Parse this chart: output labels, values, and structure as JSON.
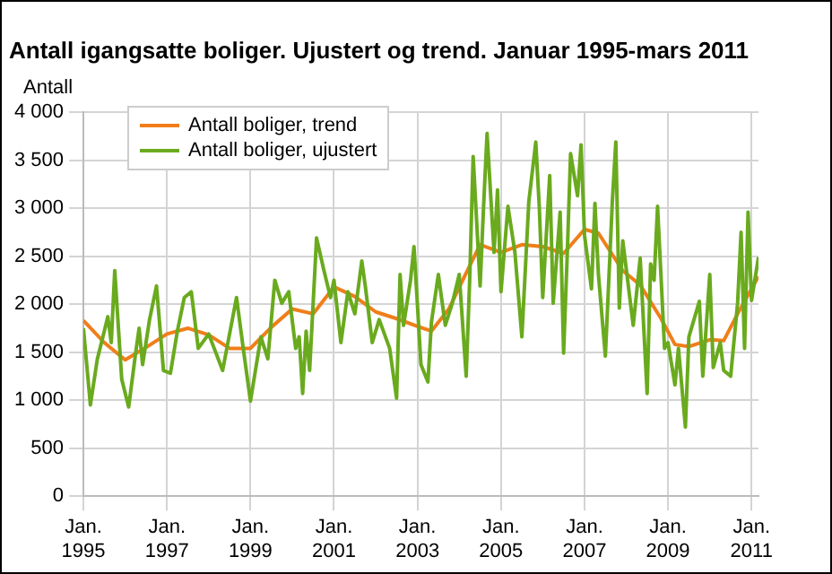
{
  "chart_data": {
    "type": "line",
    "title": "Antall igangsatte boliger. Ujustert og trend. Januar 1995-mars 2011",
    "ylabel": "Antall",
    "xlim": [
      "1995-01",
      "2011-03"
    ],
    "xticks": [
      {
        "value": "1995-01",
        "label": "Jan. 1995"
      },
      {
        "value": "1997-01",
        "label": "Jan. 1997"
      },
      {
        "value": "1999-01",
        "label": "Jan. 1999"
      },
      {
        "value": "2001-01",
        "label": "Jan. 2001"
      },
      {
        "value": "2003-01",
        "label": "Jan. 2003"
      },
      {
        "value": "2005-01",
        "label": "Jan. 2005"
      },
      {
        "value": "2007-01",
        "label": "Jan. 2007"
      },
      {
        "value": "2009-01",
        "label": "Jan. 2009"
      },
      {
        "value": "2011-01",
        "label": "Jan. 2011"
      }
    ],
    "ylim": [
      0,
      4000
    ],
    "yticks": [
      0,
      500,
      {
        "value": 1000,
        "label": "1 000"
      },
      {
        "value": 1500,
        "label": "1 500"
      },
      {
        "value": 2000,
        "label": "2 000"
      },
      {
        "value": 2500,
        "label": "2 500"
      },
      {
        "value": 3000,
        "label": "3 000"
      },
      {
        "value": 3500,
        "label": "3 500"
      },
      {
        "value": 4000,
        "label": "4 000"
      }
    ],
    "grid": true,
    "legend": "top left",
    "marker": "none",
    "line_style": "solid",
    "series": [
      {
        "name": "Antall boliger, trend",
        "color": "#f07e1a",
        "x": [
          "1995-01",
          "1995-07",
          "1996-01",
          "1996-07",
          "1997-01",
          "1997-07",
          "1998-01",
          "1998-07",
          "1999-01",
          "1999-07",
          "2000-01",
          "2000-07",
          "2001-01",
          "2001-07",
          "2002-01",
          "2002-07",
          "2003-01",
          "2003-05",
          "2003-10",
          "2004-04",
          "2004-07",
          "2005-01",
          "2005-07",
          "2006-01",
          "2006-07",
          "2007-01",
          "2007-05",
          "2007-12",
          "2008-05",
          "2008-11",
          "2009-03",
          "2009-07",
          "2010-01",
          "2010-05",
          "2010-09",
          "2011-03"
        ],
        "values": [
          1830,
          1600,
          1420,
          1550,
          1690,
          1750,
          1680,
          1540,
          1540,
          1760,
          1950,
          1900,
          2180,
          2080,
          1920,
          1850,
          1770,
          1720,
          1950,
          2400,
          2620,
          2540,
          2620,
          2600,
          2530,
          2780,
          2740,
          2350,
          2200,
          1850,
          1580,
          1560,
          1630,
          1620,
          1900,
          2290
        ]
      },
      {
        "name": "Antall boliger, ujustert",
        "color": "#6aaa1e",
        "x": [
          "1995-01",
          "1995-03",
          "1995-05",
          "1995-07",
          "1995-08",
          "1995-09",
          "1995-10",
          "1995-12",
          "1996-02",
          "1996-04",
          "1996-05",
          "1996-06",
          "1996-08",
          "1996-10",
          "1996-12",
          "1997-02",
          "1997-04",
          "1997-06",
          "1997-08",
          "1997-10",
          "1998-01",
          "1998-05",
          "1998-09",
          "1998-11",
          "1999-01",
          "1999-04",
          "1999-06",
          "1999-08",
          "1999-10",
          "1999-12",
          "2000-02",
          "2000-03",
          "2000-04",
          "2000-05",
          "2000-06",
          "2000-08",
          "2000-10",
          "2000-12",
          "2001-01",
          "2001-03",
          "2001-05",
          "2001-07",
          "2001-09",
          "2001-10",
          "2001-12",
          "2002-02",
          "2002-05",
          "2002-07",
          "2002-08",
          "2002-09",
          "2002-11",
          "2002-12",
          "2003-02",
          "2003-04",
          "2003-05",
          "2003-07",
          "2003-09",
          "2003-11",
          "2004-01",
          "2004-03",
          "2004-04",
          "2004-05",
          "2004-07",
          "2004-08",
          "2004-09",
          "2004-11",
          "2004-12",
          "2005-01",
          "2005-03",
          "2005-05",
          "2005-07",
          "2005-09",
          "2005-11",
          "2005-12",
          "2006-01",
          "2006-03",
          "2006-04",
          "2006-06",
          "2006-07",
          "2006-08",
          "2006-09",
          "2006-11",
          "2006-12",
          "2007-01",
          "2007-03",
          "2007-04",
          "2007-05",
          "2007-07",
          "2007-09",
          "2007-10",
          "2007-11",
          "2007-12",
          "2008-03",
          "2008-05",
          "2008-07",
          "2008-08",
          "2008-09",
          "2008-10",
          "2008-12",
          "2009-01",
          "2009-03",
          "2009-04",
          "2009-06",
          "2009-07",
          "2009-10",
          "2009-11",
          "2010-01",
          "2010-02",
          "2010-04",
          "2010-05",
          "2010-07",
          "2010-09",
          "2010-10",
          "2010-11",
          "2010-12",
          "2011-01",
          "2011-03"
        ],
        "values": [
          1750,
          950,
          1430,
          1720,
          1870,
          1600,
          2350,
          1220,
          930,
          1490,
          1750,
          1370,
          1840,
          2190,
          1310,
          1280,
          1720,
          2070,
          2130,
          1540,
          1690,
          1310,
          2070,
          1520,
          990,
          1660,
          1430,
          2250,
          2010,
          2130,
          1540,
          1660,
          1070,
          1720,
          1310,
          2690,
          2370,
          2070,
          2250,
          1600,
          2130,
          1900,
          2450,
          2190,
          1600,
          1840,
          1540,
          1020,
          2310,
          1780,
          2250,
          2600,
          1370,
          1190,
          1810,
          2310,
          1780,
          2010,
          2310,
          1250,
          2250,
          3540,
          2190,
          3020,
          3780,
          2540,
          3190,
          2130,
          3020,
          2540,
          1660,
          3070,
          3690,
          3020,
          2070,
          3340,
          2010,
          2960,
          1490,
          2480,
          3570,
          3130,
          3660,
          2720,
          2160,
          3050,
          2310,
          1460,
          3070,
          3690,
          1960,
          2660,
          1780,
          2480,
          1070,
          2420,
          2250,
          3020,
          1540,
          1600,
          1160,
          1540,
          720,
          1660,
          2030,
          1250,
          2310,
          1340,
          1600,
          1310,
          1250,
          2010,
          2750,
          1540,
          2960,
          2040,
          2490
        ]
      }
    ]
  }
}
